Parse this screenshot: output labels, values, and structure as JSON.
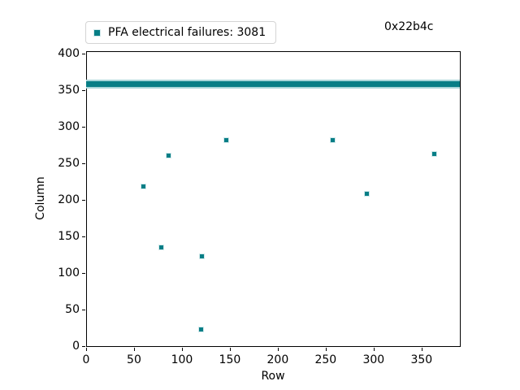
{
  "figure": {
    "legend_label": "PFA electrical failures: 3081",
    "annotation": "0x22b4c"
  },
  "chart_data": {
    "type": "scatter",
    "title": "",
    "xlabel": "Row",
    "ylabel": "Column",
    "legend": [
      {
        "label": "PFA electrical failures: 3081",
        "marker": "square",
        "color": "#077e86"
      }
    ],
    "legend_position": "top-left, above plot area",
    "annotation": "0x22b4c",
    "grid": false,
    "xlim": [
      0,
      390
    ],
    "ylim": [
      0,
      403
    ],
    "x_ticks": [
      0,
      50,
      100,
      150,
      200,
      250,
      300,
      350
    ],
    "y_ticks": [
      0,
      50,
      100,
      150,
      200,
      250,
      300,
      350,
      400
    ],
    "marker": "square",
    "marker_color": "#077e86",
    "total_failures_label": 3081,
    "band": {
      "description": "dense horizontal band of overlapping square markers spanning all rows",
      "row_min": 0,
      "row_max": 390,
      "col_min": 352,
      "col_max": 364
    },
    "points_rowcol": [
      [
        60,
        218
      ],
      [
        78,
        135
      ],
      [
        86,
        260
      ],
      [
        120,
        23
      ],
      [
        121,
        123
      ],
      [
        146,
        281
      ],
      [
        257,
        281
      ],
      [
        293,
        208
      ],
      [
        363,
        263
      ]
    ]
  }
}
